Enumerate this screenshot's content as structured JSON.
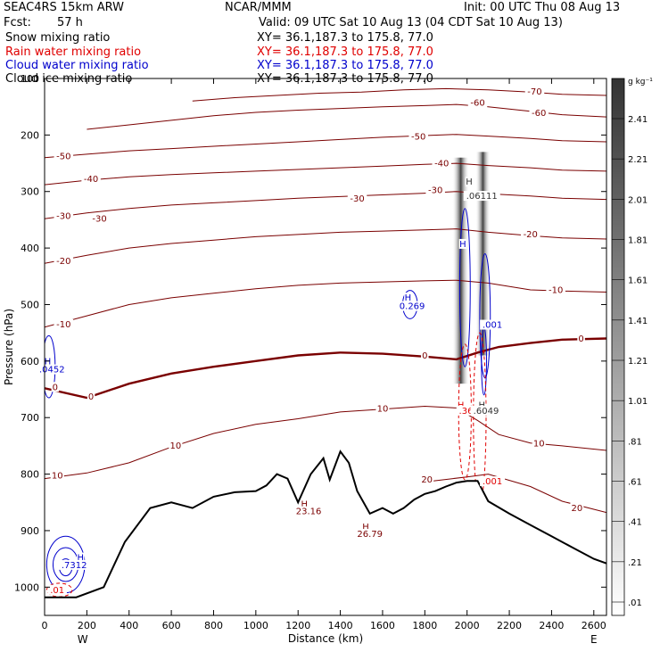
{
  "header": {
    "model": "SEAC4RS 15km ARW",
    "org": "NCAR/MMM",
    "init": "Init: 00 UTC Thu 08 Aug 13",
    "fcst_label": "Fcst:",
    "fcst_value": "57 h",
    "valid": "Valid: 09 UTC Sat 10 Aug 13 (04 CDT Sat 10 Aug 13)",
    "fields": [
      {
        "name": "Snow mixing ratio",
        "xy": "XY=  36.1,187.3 to 175.8, 77.0",
        "color": "#000000"
      },
      {
        "name": "Rain water mixing ratio",
        "xy": "XY=  36.1,187.3 to 175.8, 77.0",
        "color": "#e00000"
      },
      {
        "name": "Cloud water mixing ratio",
        "xy": "XY=  36.1,187.3 to 175.8, 77.0",
        "color": "#0000cc"
      },
      {
        "name": "Cloud ice mixing ratio",
        "xy": "XY=  36.1,187.3 to 175.8, 77.0",
        "color": "#000000"
      }
    ]
  },
  "chart_data": {
    "type": "cross-section",
    "xlabel": "Distance (km)",
    "ylabel": "Pressure (hPa)",
    "x_range": [
      0,
      2660
    ],
    "y_range": [
      1050,
      100
    ],
    "x_ticks": [
      0,
      200,
      400,
      600,
      800,
      1000,
      1200,
      1400,
      1600,
      1800,
      2000,
      2200,
      2400,
      2600
    ],
    "y_ticks": [
      1000,
      900,
      800,
      700,
      600,
      500,
      400,
      300,
      200,
      100
    ],
    "x_end_labels": {
      "left": "W",
      "right": "E"
    },
    "colorbar": {
      "unit": "g kg⁻¹",
      "labels": [
        "2.41",
        "2.21",
        "2.01",
        "1.81",
        "1.61",
        "1.41",
        "1.21",
        "1.01",
        ".81",
        ".61",
        ".41",
        ".21",
        ".01"
      ]
    },
    "temperature_contours": {
      "color": "#7a0000",
      "freezing_level": 0,
      "levels": [
        {
          "t": 20,
          "pts": [
            [
              1840,
              812
            ],
            [
              2000,
              805
            ],
            [
              2100,
              800
            ],
            [
              2300,
              822
            ],
            [
              2450,
              848
            ],
            [
              2660,
              868
            ]
          ]
        },
        {
          "t": 10,
          "pts": [
            [
              0,
              808
            ],
            [
              200,
              798
            ],
            [
              400,
              780
            ],
            [
              600,
              752
            ],
            [
              800,
              728
            ],
            [
              1000,
              712
            ],
            [
              1200,
              702
            ],
            [
              1400,
              690
            ],
            [
              1600,
              685
            ],
            [
              1800,
              680
            ],
            [
              1950,
              683
            ],
            [
              2050,
              705
            ],
            [
              2150,
              730
            ],
            [
              2300,
              745
            ],
            [
              2450,
              750
            ],
            [
              2660,
              758
            ]
          ]
        },
        {
          "t": 0,
          "pts": [
            [
              0,
              648
            ],
            [
              200,
              665
            ],
            [
              400,
              640
            ],
            [
              600,
              622
            ],
            [
              800,
              610
            ],
            [
              1000,
              600
            ],
            [
              1200,
              590
            ],
            [
              1400,
              585
            ],
            [
              1600,
              587
            ],
            [
              1800,
              592
            ],
            [
              1950,
              597
            ],
            [
              2050,
              585
            ],
            [
              2150,
              575
            ],
            [
              2300,
              568
            ],
            [
              2450,
              562
            ],
            [
              2660,
              560
            ]
          ]
        },
        {
          "t": -10,
          "pts": [
            [
              0,
              540
            ],
            [
              200,
              520
            ],
            [
              400,
              500
            ],
            [
              600,
              488
            ],
            [
              800,
              480
            ],
            [
              1000,
              472
            ],
            [
              1200,
              466
            ],
            [
              1400,
              462
            ],
            [
              1600,
              460
            ],
            [
              1800,
              458
            ],
            [
              1950,
              457
            ],
            [
              2100,
              462
            ],
            [
              2300,
              474
            ],
            [
              2450,
              476
            ],
            [
              2660,
              478
            ]
          ]
        },
        {
          "t": -20,
          "pts": [
            [
              0,
              427
            ],
            [
              200,
              413
            ],
            [
              400,
              400
            ],
            [
              600,
              392
            ],
            [
              800,
              386
            ],
            [
              1000,
              380
            ],
            [
              1200,
              376
            ],
            [
              1400,
              372
            ],
            [
              1600,
              370
            ],
            [
              1800,
              368
            ],
            [
              1950,
              366
            ],
            [
              2100,
              372
            ],
            [
              2300,
              378
            ],
            [
              2450,
              382
            ],
            [
              2660,
              384
            ]
          ]
        },
        {
          "t": -30,
          "pts": [
            [
              0,
              348
            ],
            [
              200,
              338
            ],
            [
              400,
              330
            ],
            [
              600,
              324
            ],
            [
              800,
              320
            ],
            [
              1000,
              316
            ],
            [
              1200,
              312
            ],
            [
              1400,
              309
            ],
            [
              1600,
              306
            ],
            [
              1800,
              303
            ],
            [
              1950,
              300
            ],
            [
              2100,
              304
            ],
            [
              2300,
              308
            ],
            [
              2450,
              312
            ],
            [
              2660,
              314
            ]
          ]
        },
        {
          "t": -40,
          "pts": [
            [
              0,
              288
            ],
            [
              200,
              280
            ],
            [
              400,
              274
            ],
            [
              600,
              270
            ],
            [
              800,
              267
            ],
            [
              1000,
              264
            ],
            [
              1200,
              261
            ],
            [
              1400,
              258
            ],
            [
              1600,
              255
            ],
            [
              1800,
              252
            ],
            [
              1950,
              250
            ],
            [
              2100,
              254
            ],
            [
              2300,
              258
            ],
            [
              2450,
              262
            ],
            [
              2660,
              264
            ]
          ]
        },
        {
          "t": -50,
          "pts": [
            [
              0,
              240
            ],
            [
              200,
              234
            ],
            [
              400,
              228
            ],
            [
              600,
              224
            ],
            [
              800,
              220
            ],
            [
              1000,
              216
            ],
            [
              1200,
              212
            ],
            [
              1400,
              208
            ],
            [
              1600,
              204
            ],
            [
              1800,
              201
            ],
            [
              1950,
              199
            ],
            [
              2100,
              202
            ],
            [
              2300,
              206
            ],
            [
              2450,
              210
            ],
            [
              2660,
              212
            ]
          ]
        },
        {
          "t": -60,
          "pts": [
            [
              200,
              190
            ],
            [
              400,
              182
            ],
            [
              600,
              174
            ],
            [
              800,
              166
            ],
            [
              1000,
              160
            ],
            [
              1200,
              156
            ],
            [
              1400,
              153
            ],
            [
              1600,
              150
            ],
            [
              1800,
              148
            ],
            [
              1950,
              146
            ],
            [
              2100,
              150
            ],
            [
              2300,
              158
            ],
            [
              2450,
              164
            ],
            [
              2660,
              168
            ]
          ]
        },
        {
          "t": -70,
          "pts": [
            [
              700,
              140
            ],
            [
              900,
              134
            ],
            [
              1100,
              130
            ],
            [
              1300,
              126
            ],
            [
              1500,
              124
            ],
            [
              1700,
              120
            ],
            [
              1900,
              118
            ],
            [
              2100,
              120
            ],
            [
              2300,
              124
            ],
            [
              2450,
              128
            ],
            [
              2660,
              130
            ]
          ]
        }
      ],
      "labels": [
        {
          "text": "-70",
          "x": 2320,
          "p": 125
        },
        {
          "text": "-60",
          "x": 2050,
          "p": 145
        },
        {
          "text": "-60",
          "x": 2340,
          "p": 163
        },
        {
          "text": "-50",
          "x": 90,
          "p": 240
        },
        {
          "text": "-50",
          "x": 1770,
          "p": 205
        },
        {
          "text": "-40",
          "x": 220,
          "p": 280
        },
        {
          "text": "-40",
          "x": 1880,
          "p": 252
        },
        {
          "text": "-30",
          "x": 90,
          "p": 345
        },
        {
          "text": "-30",
          "x": 260,
          "p": 350
        },
        {
          "text": "-30",
          "x": 1480,
          "p": 315
        },
        {
          "text": "-30",
          "x": 1850,
          "p": 300
        },
        {
          "text": "-20",
          "x": 90,
          "p": 425
        },
        {
          "text": "-20",
          "x": 2300,
          "p": 378
        },
        {
          "text": "-10",
          "x": 90,
          "p": 537
        },
        {
          "text": "-10",
          "x": 2420,
          "p": 476
        },
        {
          "text": "0",
          "x": 50,
          "p": 648
        },
        {
          "text": "0",
          "x": 220,
          "p": 665
        },
        {
          "text": "0",
          "x": 1800,
          "p": 592
        },
        {
          "text": "0",
          "x": 2540,
          "p": 562
        },
        {
          "text": "10",
          "x": 60,
          "p": 805
        },
        {
          "text": "10",
          "x": 620,
          "p": 752
        },
        {
          "text": "10",
          "x": 1600,
          "p": 686
        },
        {
          "text": "10",
          "x": 2340,
          "p": 748
        },
        {
          "text": "20",
          "x": 1810,
          "p": 812
        },
        {
          "text": "20",
          "x": 2520,
          "p": 862
        }
      ]
    },
    "terrain": {
      "pts": [
        [
          0,
          1018
        ],
        [
          150,
          1018
        ],
        [
          280,
          1000
        ],
        [
          380,
          920
        ],
        [
          500,
          860
        ],
        [
          600,
          850
        ],
        [
          700,
          860
        ],
        [
          800,
          840
        ],
        [
          900,
          832
        ],
        [
          1000,
          830
        ],
        [
          1050,
          820
        ],
        [
          1100,
          800
        ],
        [
          1150,
          808
        ],
        [
          1200,
          850
        ],
        [
          1260,
          800
        ],
        [
          1320,
          772
        ],
        [
          1350,
          810
        ],
        [
          1400,
          760
        ],
        [
          1440,
          780
        ],
        [
          1480,
          830
        ],
        [
          1540,
          870
        ],
        [
          1600,
          860
        ],
        [
          1650,
          870
        ],
        [
          1700,
          860
        ],
        [
          1750,
          845
        ],
        [
          1800,
          835
        ],
        [
          1850,
          830
        ],
        [
          1900,
          822
        ],
        [
          1950,
          815
        ],
        [
          2000,
          812
        ],
        [
          2050,
          812
        ],
        [
          2100,
          848
        ],
        [
          2200,
          870
        ],
        [
          2300,
          890
        ],
        [
          2400,
          910
        ],
        [
          2500,
          930
        ],
        [
          2600,
          950
        ],
        [
          2660,
          958
        ]
      ]
    },
    "cloud_water": {
      "color": "#0000cc",
      "maxima": [
        {
          "text": "H",
          "x": 15,
          "p": 603
        },
        {
          "text": ".0452",
          "x": 35,
          "p": 617
        },
        {
          "text": "H",
          "x": 1720,
          "p": 490
        },
        {
          "text": "0.269",
          "x": 1740,
          "p": 505
        },
        {
          "text": "H",
          "x": 1980,
          "p": 395
        },
        {
          "text": ".001",
          "x": 2120,
          "p": 538
        },
        {
          "text": "H",
          "x": 170,
          "p": 950
        },
        {
          "text": ".7312",
          "x": 140,
          "p": 963
        }
      ]
    },
    "rain_water": {
      "color": "#e00000",
      "maxima": [
        {
          "text": "H",
          "x": 1970,
          "p": 680
        },
        {
          "text": ".36",
          "x": 1995,
          "p": 690
        },
        {
          "text": ".001",
          "x": 2120,
          "p": 815
        },
        {
          "text": ".01",
          "x": 60,
          "p": 1007
        }
      ]
    },
    "snow_ice": {
      "color": "#333333",
      "maxima": [
        {
          "text": "H",
          "x": 2010,
          "p": 285
        },
        {
          "text": ".06111",
          "x": 2070,
          "p": 310
        },
        {
          "text": "H",
          "x": 2070,
          "p": 680
        },
        {
          "text": ".6049",
          "x": 2090,
          "p": 690
        }
      ]
    },
    "terrain_maxima": [
      {
        "text": "H",
        "x": 1230,
        "p": 855
      },
      {
        "text": "23.16",
        "x": 1250,
        "p": 868
      },
      {
        "text": "H",
        "x": 1520,
        "p": 895
      },
      {
        "text": "26.79",
        "x": 1540,
        "p": 908
      }
    ]
  }
}
